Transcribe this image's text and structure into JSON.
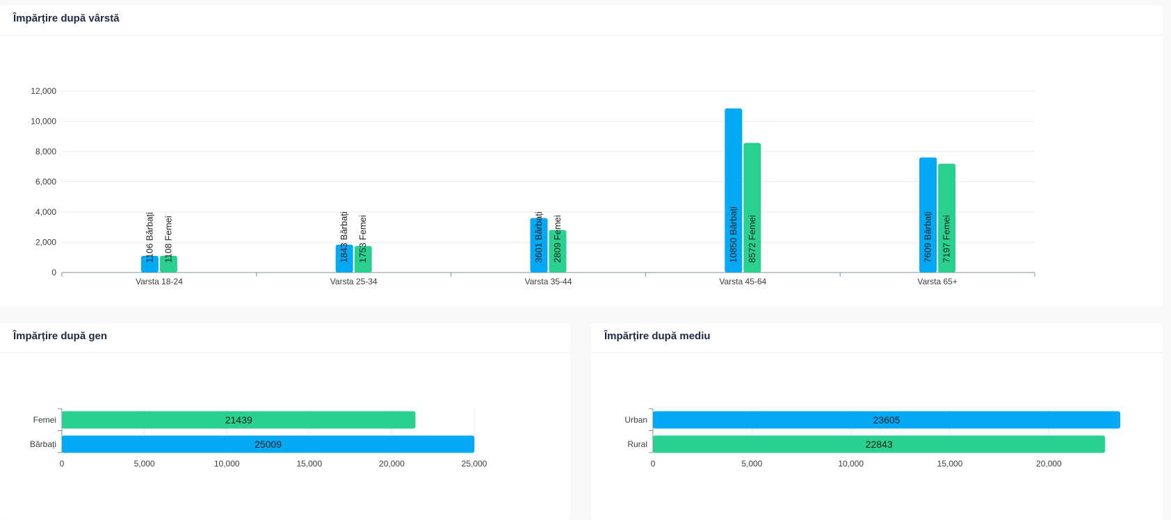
{
  "colors": {
    "blue": "#03a9f4",
    "green": "#2ad08f",
    "grid": "#e9e9ec",
    "axis": "#78909c",
    "tick_text": "#373d3f"
  },
  "cards": {
    "age": {
      "title": "Împărțire după vârstă"
    },
    "gender": {
      "title": "Împărțire după gen"
    },
    "environment": {
      "title": "Împărțire după mediu"
    }
  },
  "chart_data": [
    {
      "type": "bar",
      "title": "Împărțire după vârstă",
      "categories": [
        "Varsta 18-24",
        "Varsta 25-34",
        "Varsta 35-44",
        "Varsta 45-64",
        "Varsta 65+"
      ],
      "series": [
        {
          "name": "Bărbați",
          "color": "#03a9f4",
          "values": [
            1106,
            1843,
            3601,
            10850,
            7609
          ]
        },
        {
          "name": "Femei",
          "color": "#2ad08f",
          "values": [
            1108,
            1753,
            2809,
            8572,
            7197
          ]
        }
      ],
      "y_ticks": [
        "0",
        "2,000",
        "4,000",
        "6,000",
        "8,000",
        "10,000",
        "12,000"
      ],
      "ylim": [
        0,
        12000
      ],
      "grid": true,
      "data_labels": [
        [
          "1106 Bărbați",
          "1843 Bărbați",
          "3601 Bărbați",
          "10850 Bărbați",
          "7609 Bărbați"
        ],
        [
          "1108 Femei",
          "1753 Femei",
          "2809 Femei",
          "8572 Femei",
          "7197 Femei"
        ]
      ]
    },
    {
      "type": "bar",
      "orientation": "horizontal",
      "title": "Împărțire după gen",
      "categories": [
        "Femei",
        "Bărbați"
      ],
      "values": [
        21439,
        25009
      ],
      "colors": [
        "#2ad08f",
        "#03a9f4"
      ],
      "data_labels": [
        "21439",
        "25009"
      ],
      "x_ticks": [
        "0",
        "5,000",
        "10,000",
        "15,000",
        "20,000",
        "25,000"
      ],
      "xlim": [
        0,
        25000
      ],
      "grid": true
    },
    {
      "type": "bar",
      "orientation": "horizontal",
      "title": "Împărțire după mediu",
      "categories": [
        "Urban",
        "Rural"
      ],
      "values": [
        23605,
        22843
      ],
      "colors": [
        "#03a9f4",
        "#2ad08f"
      ],
      "data_labels": [
        "23605",
        "22843"
      ],
      "x_ticks": [
        "0",
        "5,000",
        "10,000",
        "15,000",
        "20,000"
      ],
      "xlim": [
        0,
        23605
      ],
      "grid": true
    }
  ]
}
